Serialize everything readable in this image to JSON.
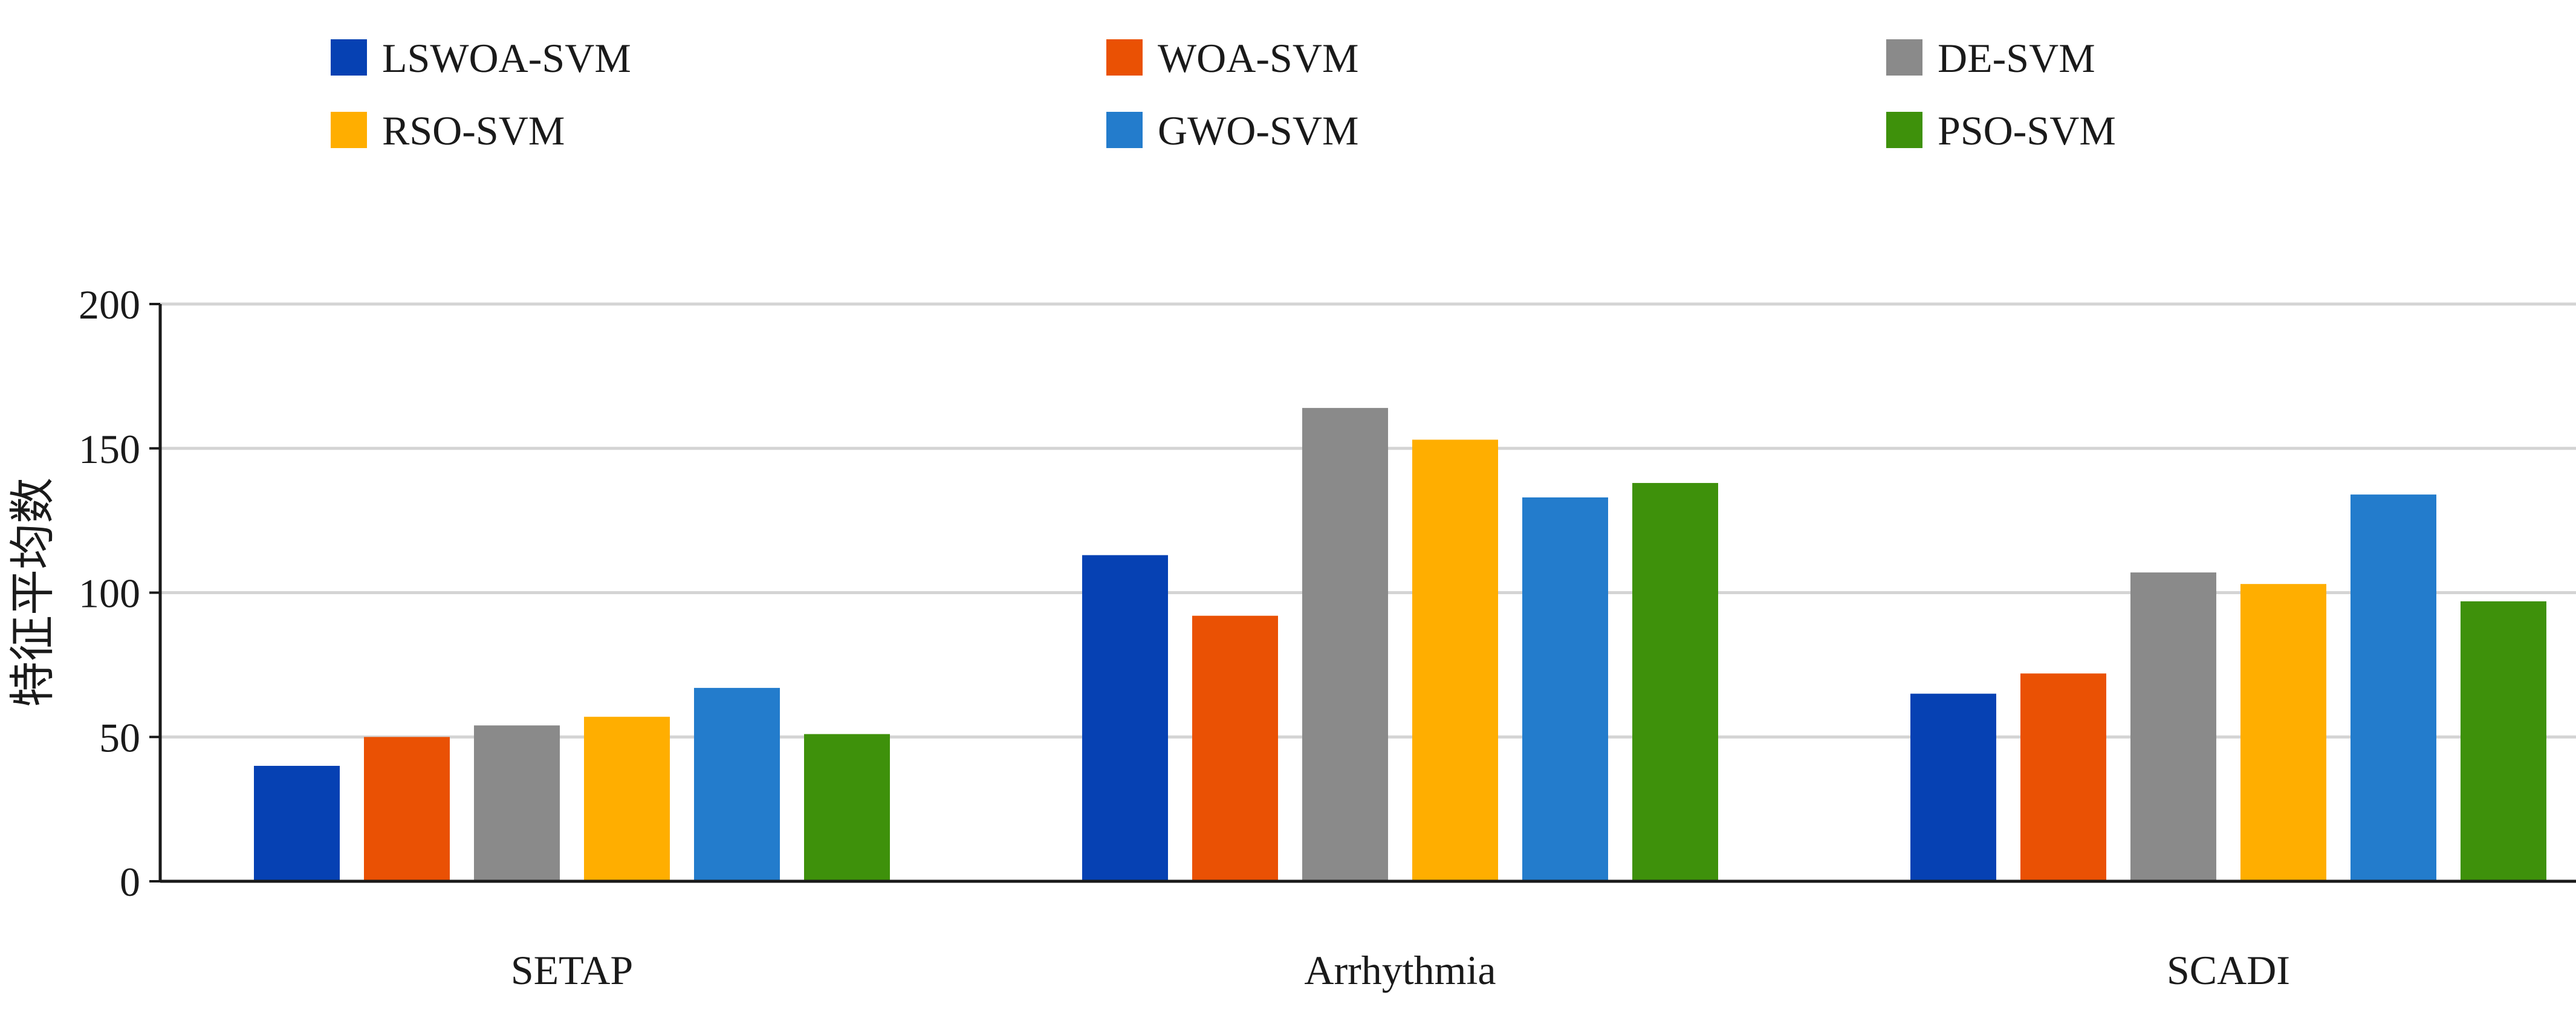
{
  "chart_data": {
    "type": "bar",
    "title": "",
    "xlabel": "",
    "ylabel": "特征平均数",
    "categories": [
      "SETAP",
      "Arrhythmia",
      "SCADI"
    ],
    "ylim": [
      0,
      200
    ],
    "yticks": [
      0,
      50,
      100,
      150,
      200
    ],
    "grid": true,
    "legend_position": "top",
    "series": [
      {
        "name": "LSWOA-SVM",
        "color": "#0641b3",
        "values": [
          40,
          113,
          65
        ]
      },
      {
        "name": "WOA-SVM",
        "color": "#ea5104",
        "values": [
          50,
          92,
          72
        ]
      },
      {
        "name": "DE-SVM",
        "color": "#8a8a8a",
        "values": [
          54,
          164,
          107
        ]
      },
      {
        "name": "RSO-SVM",
        "color": "#ffae00",
        "values": [
          57,
          153,
          103
        ]
      },
      {
        "name": "GWO-SVM",
        "color": "#237ccc",
        "values": [
          67,
          133,
          134
        ]
      },
      {
        "name": "PSO-SVM",
        "color": "#3e910b",
        "values": [
          51,
          138,
          97
        ]
      }
    ]
  }
}
